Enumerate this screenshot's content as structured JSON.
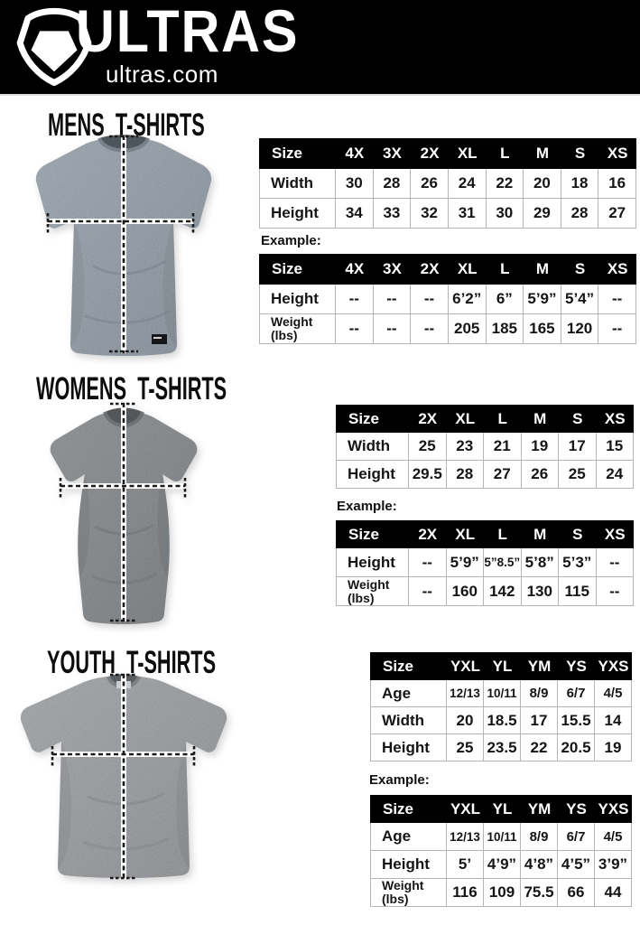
{
  "header": {
    "brand": "ULTRAS",
    "site": "ultras.com",
    "logo_icon": "pentagon-badge-icon"
  },
  "example_label": "Example:",
  "colors": {
    "header_bg": "#000000",
    "table_header_bg": "#000000",
    "table_border": "#b5b5b5",
    "text": "#111111",
    "mens_shirt": "#8e97a1",
    "womens_shirt": "#7f8386",
    "youth_shirt": "#94979a"
  },
  "sections": [
    {
      "id": "mens",
      "title": "MENS T-SHIRTS",
      "size_table": {
        "columns": [
          "Size",
          "4X",
          "3X",
          "2X",
          "XL",
          "L",
          "M",
          "S",
          "XS"
        ],
        "rows": [
          {
            "label": "Width",
            "cells": [
              "30",
              "28",
              "26",
              "24",
              "22",
              "20",
              "18",
              "16"
            ]
          },
          {
            "label": "Height",
            "cells": [
              "34",
              "33",
              "32",
              "31",
              "30",
              "29",
              "28",
              "27"
            ]
          }
        ]
      },
      "example_table": {
        "columns": [
          "Size",
          "4X",
          "3X",
          "2X",
          "XL",
          "L",
          "M",
          "S",
          "XS"
        ],
        "rows": [
          {
            "label": "Height",
            "cells": [
              "--",
              "--",
              "--",
              "6’2”",
              "6”",
              "5’9”",
              "5’4”",
              "--"
            ]
          },
          {
            "label": "Weight",
            "sublabel": "(lbs)",
            "cells": [
              "--",
              "--",
              "--",
              "205",
              "185",
              "165",
              "120",
              "--"
            ]
          }
        ]
      }
    },
    {
      "id": "womens",
      "title": "WOMENS T-SHIRTS",
      "size_table": {
        "columns": [
          "Size",
          "2X",
          "XL",
          "L",
          "M",
          "S",
          "XS"
        ],
        "rows": [
          {
            "label": "Width",
            "cells": [
              "25",
              "23",
              "21",
              "19",
              "17",
              "15"
            ]
          },
          {
            "label": "Height",
            "cells": [
              "29.5",
              "28",
              "27",
              "26",
              "25",
              "24"
            ]
          }
        ]
      },
      "example_table": {
        "columns": [
          "Size",
          "2X",
          "XL",
          "L",
          "M",
          "S",
          "XS"
        ],
        "rows": [
          {
            "label": "Height",
            "cells": [
              "--",
              "5’9”",
              "5”8.5”",
              "5’8”",
              "5’3”",
              "--"
            ]
          },
          {
            "label": "Weight",
            "sublabel": "(lbs)",
            "cells": [
              "--",
              "160",
              "142",
              "130",
              "115",
              "--"
            ]
          }
        ]
      }
    },
    {
      "id": "youth",
      "title": "YOUTH T-SHIRTS",
      "size_table": {
        "columns": [
          "Size",
          "YXL",
          "YL",
          "YM",
          "YS",
          "YXS"
        ],
        "rows": [
          {
            "label": "Age",
            "cells": [
              "12/13",
              "10/11",
              "8/9",
              "6/7",
              "4/5"
            ]
          },
          {
            "label": "Width",
            "cells": [
              "20",
              "18.5",
              "17",
              "15.5",
              "14"
            ]
          },
          {
            "label": "Height",
            "cells": [
              "25",
              "23.5",
              "22",
              "20.5",
              "19"
            ]
          }
        ]
      },
      "example_table": {
        "columns": [
          "Size",
          "YXL",
          "YL",
          "YM",
          "YS",
          "YXS"
        ],
        "rows": [
          {
            "label": "Age",
            "cells": [
              "12/13",
              "10/11",
              "8/9",
              "6/7",
              "4/5"
            ]
          },
          {
            "label": "Height",
            "cells": [
              "5’",
              "4’9”",
              "4’8”",
              "4’5”",
              "3’9”"
            ]
          },
          {
            "label": "Weight",
            "sublabel": "(lbs)",
            "cells": [
              "116",
              "109",
              "75.5",
              "66",
              "44"
            ]
          }
        ]
      }
    }
  ]
}
